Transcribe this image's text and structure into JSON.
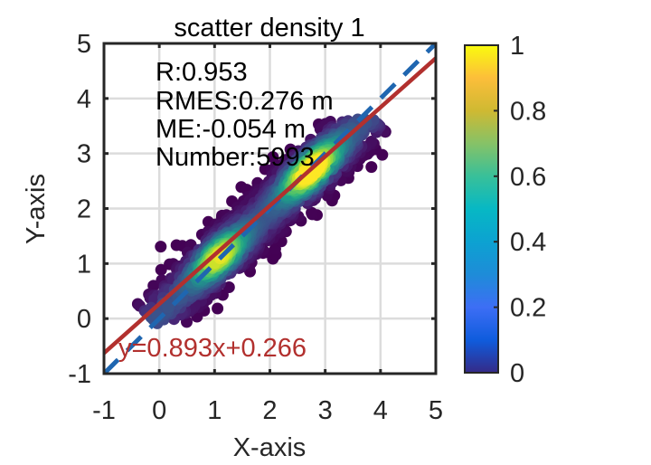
{
  "chart_data": {
    "type": "scatter",
    "title": "scatter density 1",
    "xlabel": "X-axis",
    "ylabel": "Y-axis",
    "xlim": [
      -1,
      5
    ],
    "ylim": [
      -1,
      5
    ],
    "xticks": [
      "-1",
      "0",
      "1",
      "2",
      "3",
      "4",
      "5"
    ],
    "yticks": [
      "-1",
      "0",
      "1",
      "2",
      "3",
      "4",
      "5"
    ],
    "grid": true,
    "stats": {
      "r": "R:0.953",
      "rmse": "RMES:0.276 m",
      "me": "ME:-0.054 m",
      "number": "Number:5993"
    },
    "fit_line": {
      "label": "y=0.893x+0.266",
      "slope": 0.893,
      "intercept": 0.266,
      "color": "#b2302e"
    },
    "identity_line": {
      "label": "1:1",
      "style": "dashed",
      "color": "#1f66b0"
    },
    "point_count": 5993,
    "density_clusters": [
      {
        "x_center": 1.0,
        "y_center": 1.2,
        "peak_density": 0.85
      },
      {
        "x_center": 2.7,
        "y_center": 2.75,
        "peak_density": 1.0
      }
    ],
    "point_extent": {
      "x": [
        -0.2,
        3.8
      ],
      "y": [
        -0.1,
        3.65
      ]
    },
    "colorbar": {
      "colormap": "parula",
      "range": [
        0,
        1
      ],
      "ticks": [
        "0",
        "0.2",
        "0.4",
        "0.6",
        "0.8",
        "1"
      ]
    },
    "point_colormap": "viridis"
  }
}
